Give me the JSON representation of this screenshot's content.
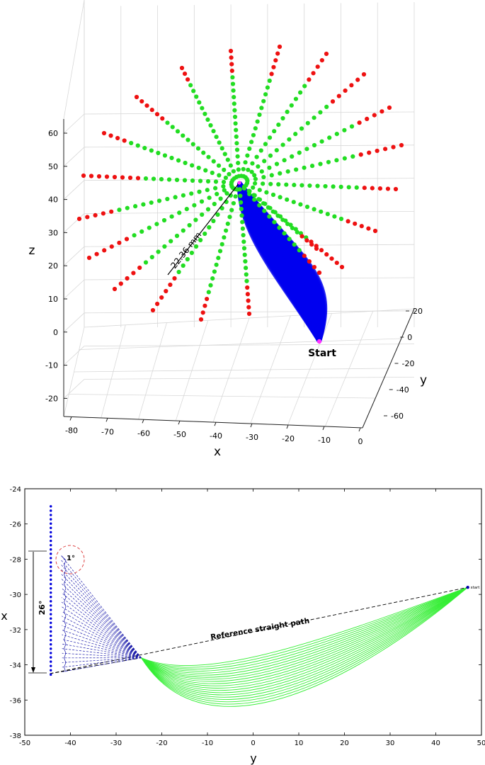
{
  "chart_data": [
    {
      "type": "scatter",
      "view": "3d",
      "xlabel": "x",
      "ylabel": "y",
      "zlabel": "z",
      "x_ticks": [
        "-80",
        "-70",
        "-60",
        "-50",
        "-40",
        "-30",
        "-20",
        "-10",
        "0"
      ],
      "y_ticks": [
        "20",
        "0",
        "-20",
        "-40",
        "-60"
      ],
      "z_ticks": [
        "60",
        "50",
        "40",
        "30",
        "20",
        "10",
        "0",
        "-10",
        "-20"
      ],
      "xlim": [
        -85,
        0
      ],
      "ylim": [
        -70,
        20
      ],
      "zlim": [
        -25,
        65
      ],
      "grid": true,
      "annotations": {
        "radius": "22.36 mm",
        "start": "Start"
      },
      "series": [
        {
          "kind": "reachable points",
          "color": "#22dd22"
        },
        {
          "kind": "unreachable points",
          "color": "#ee1111"
        },
        {
          "kind": "trajectories",
          "color": "#0000ee"
        }
      ],
      "rays": 24,
      "points_per_ray": 20
    },
    {
      "type": "line",
      "xlabel": "y",
      "ylabel": "x",
      "xlim": [
        -50,
        50
      ],
      "ylim": [
        -38,
        -24
      ],
      "x_ticks": [
        "-50",
        "-40",
        "-30",
        "-20",
        "-10",
        "0",
        "10",
        "20",
        "30",
        "40",
        "50"
      ],
      "y_ticks": [
        "-24",
        "-26",
        "-28",
        "-30",
        "-32",
        "-34",
        "-36",
        "-38"
      ],
      "start_point": {
        "y": 47,
        "x": -29.6,
        "label": "start"
      },
      "junction_point": {
        "y": -24.5,
        "x": -33.6
      },
      "reference_label": "Reference straight path",
      "angle_total_label": "26°",
      "angle_step_label": "1°",
      "fan_color": "#1a1aaa",
      "paths_color": "#33ee33",
      "dots_color": "#0000dd",
      "paths_count": 20
    }
  ]
}
